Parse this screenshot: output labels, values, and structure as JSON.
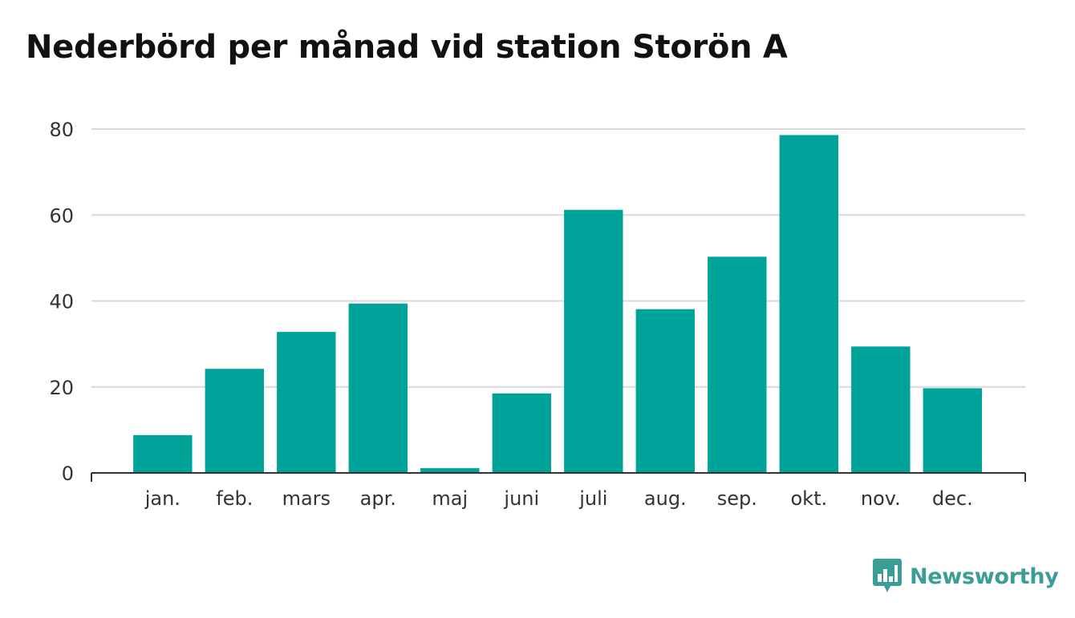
{
  "chart_data": {
    "type": "bar",
    "title": "Nederbörd per månad vid station Storön A",
    "xlabel": "",
    "ylabel": "",
    "categories": [
      "jan.",
      "feb.",
      "mars",
      "apr.",
      "maj",
      "juni",
      "juli",
      "aug.",
      "sep.",
      "okt.",
      "nov.",
      "dec."
    ],
    "values": [
      8.8,
      24.2,
      32.8,
      39.4,
      1.1,
      18.5,
      61.2,
      38.1,
      50.3,
      78.6,
      29.4,
      19.7
    ],
    "ylim": [
      0,
      80
    ],
    "yticks": [
      "0",
      "20",
      "40",
      "60",
      "80"
    ],
    "grid": true,
    "legend": "none",
    "bar_color": "#00a39a"
  },
  "branding": {
    "name": "Newsworthy",
    "color": "#3a9e96",
    "icon": "bar-chart-badge-icon"
  }
}
